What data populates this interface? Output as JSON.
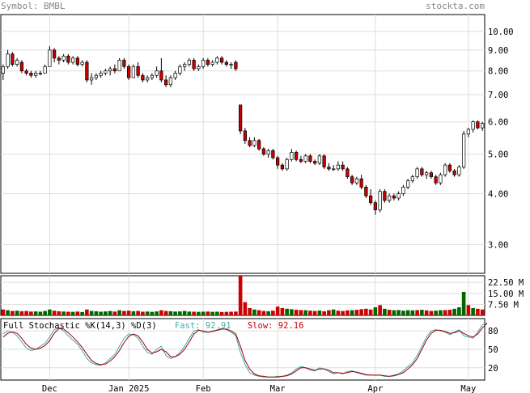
{
  "header": {
    "symbol_label": "Symbol: BMBL",
    "site": "stockta.com"
  },
  "chart_data": [
    {
      "type": "candlestick",
      "symbol": "BMBL",
      "yscale": "log",
      "ylim": [
        2.55,
        11.0
      ],
      "y_ticks": [
        "10.00",
        "9.00",
        "8.00",
        "7.00",
        "6.00",
        "5.00",
        "4.00",
        "3.00"
      ],
      "y_tick_values": [
        10,
        9,
        8,
        7,
        6,
        5,
        4,
        3
      ],
      "x_tick_labels": [
        "Dec",
        "Jan 2025",
        "Feb",
        "Mar",
        "Apr",
        "May"
      ],
      "x_tick_index": [
        10,
        27,
        43,
        59,
        80,
        100
      ],
      "grid": true,
      "colors": {
        "up": "#ffffff",
        "down": "#cc0000",
        "border": "#000000",
        "grid": "#dddddd"
      },
      "candles": [
        {
          "o": 7.9,
          "h": 8.3,
          "l": 7.6,
          "c": 8.2
        },
        {
          "o": 8.2,
          "h": 9.0,
          "l": 8.1,
          "c": 8.8
        },
        {
          "o": 8.8,
          "h": 8.9,
          "l": 8.2,
          "c": 8.3
        },
        {
          "o": 8.3,
          "h": 8.6,
          "l": 8.2,
          "c": 8.5
        },
        {
          "o": 8.4,
          "h": 8.5,
          "l": 7.9,
          "c": 8.0
        },
        {
          "o": 8.0,
          "h": 8.1,
          "l": 7.8,
          "c": 7.9
        },
        {
          "o": 7.9,
          "h": 8.0,
          "l": 7.7,
          "c": 7.8
        },
        {
          "o": 7.8,
          "h": 8.0,
          "l": 7.7,
          "c": 7.9
        },
        {
          "o": 7.9,
          "h": 8.0,
          "l": 7.8,
          "c": 7.9
        },
        {
          "o": 7.9,
          "h": 8.3,
          "l": 7.9,
          "c": 8.2
        },
        {
          "o": 8.2,
          "h": 9.2,
          "l": 8.2,
          "c": 9.0
        },
        {
          "o": 9.0,
          "h": 9.1,
          "l": 8.4,
          "c": 8.6
        },
        {
          "o": 8.6,
          "h": 8.7,
          "l": 8.3,
          "c": 8.5
        },
        {
          "o": 8.5,
          "h": 8.8,
          "l": 8.4,
          "c": 8.7
        },
        {
          "o": 8.7,
          "h": 8.8,
          "l": 8.3,
          "c": 8.4
        },
        {
          "o": 8.4,
          "h": 8.7,
          "l": 8.3,
          "c": 8.6
        },
        {
          "o": 8.6,
          "h": 8.7,
          "l": 8.2,
          "c": 8.3
        },
        {
          "o": 8.3,
          "h": 8.5,
          "l": 8.2,
          "c": 8.4
        },
        {
          "o": 8.4,
          "h": 8.5,
          "l": 7.5,
          "c": 7.6
        },
        {
          "o": 7.6,
          "h": 7.9,
          "l": 7.4,
          "c": 7.7
        },
        {
          "o": 7.7,
          "h": 7.9,
          "l": 7.6,
          "c": 7.8
        },
        {
          "o": 7.8,
          "h": 8.0,
          "l": 7.7,
          "c": 7.9
        },
        {
          "o": 7.9,
          "h": 8.1,
          "l": 7.8,
          "c": 8.0
        },
        {
          "o": 8.0,
          "h": 8.2,
          "l": 7.8,
          "c": 8.1
        },
        {
          "o": 8.1,
          "h": 8.3,
          "l": 7.9,
          "c": 8.0
        },
        {
          "o": 8.0,
          "h": 8.6,
          "l": 8.0,
          "c": 8.5
        },
        {
          "o": 8.5,
          "h": 8.6,
          "l": 8.1,
          "c": 8.2
        },
        {
          "o": 8.2,
          "h": 8.3,
          "l": 7.6,
          "c": 7.7
        },
        {
          "o": 7.7,
          "h": 8.3,
          "l": 7.7,
          "c": 8.2
        },
        {
          "o": 8.2,
          "h": 8.4,
          "l": 7.7,
          "c": 7.8
        },
        {
          "o": 7.8,
          "h": 7.9,
          "l": 7.5,
          "c": 7.6
        },
        {
          "o": 7.6,
          "h": 7.8,
          "l": 7.5,
          "c": 7.7
        },
        {
          "o": 7.7,
          "h": 7.9,
          "l": 7.6,
          "c": 7.8
        },
        {
          "o": 7.8,
          "h": 8.2,
          "l": 7.7,
          "c": 8.0
        },
        {
          "o": 8.0,
          "h": 8.6,
          "l": 7.5,
          "c": 7.6
        },
        {
          "o": 7.6,
          "h": 7.8,
          "l": 7.3,
          "c": 7.4
        },
        {
          "o": 7.4,
          "h": 7.8,
          "l": 7.3,
          "c": 7.7
        },
        {
          "o": 7.7,
          "h": 8.0,
          "l": 7.6,
          "c": 7.9
        },
        {
          "o": 7.9,
          "h": 8.3,
          "l": 7.8,
          "c": 8.2
        },
        {
          "o": 8.2,
          "h": 8.4,
          "l": 8.0,
          "c": 8.3
        },
        {
          "o": 8.3,
          "h": 8.6,
          "l": 8.2,
          "c": 8.5
        },
        {
          "o": 8.5,
          "h": 8.6,
          "l": 8.0,
          "c": 8.1
        },
        {
          "o": 8.1,
          "h": 8.3,
          "l": 8.0,
          "c": 8.2
        },
        {
          "o": 8.2,
          "h": 8.6,
          "l": 8.1,
          "c": 8.5
        },
        {
          "o": 8.5,
          "h": 8.6,
          "l": 8.2,
          "c": 8.3
        },
        {
          "o": 8.3,
          "h": 8.5,
          "l": 8.2,
          "c": 8.4
        },
        {
          "o": 8.4,
          "h": 8.7,
          "l": 8.3,
          "c": 8.6
        },
        {
          "o": 8.6,
          "h": 8.7,
          "l": 8.3,
          "c": 8.4
        },
        {
          "o": 8.4,
          "h": 8.5,
          "l": 8.2,
          "c": 8.3
        },
        {
          "o": 8.3,
          "h": 8.4,
          "l": 8.1,
          "c": 8.3
        },
        {
          "o": 8.4,
          "h": 8.5,
          "l": 8.0,
          "c": 8.1
        },
        {
          "o": 6.6,
          "h": 6.6,
          "l": 5.6,
          "c": 5.7
        },
        {
          "o": 5.7,
          "h": 5.8,
          "l": 5.3,
          "c": 5.4
        },
        {
          "o": 5.4,
          "h": 5.5,
          "l": 5.2,
          "c": 5.25
        },
        {
          "o": 5.25,
          "h": 5.5,
          "l": 5.2,
          "c": 5.4
        },
        {
          "o": 5.4,
          "h": 5.45,
          "l": 5.1,
          "c": 5.15
        },
        {
          "o": 5.15,
          "h": 5.2,
          "l": 4.95,
          "c": 5.0
        },
        {
          "o": 5.0,
          "h": 5.15,
          "l": 4.9,
          "c": 5.1
        },
        {
          "o": 5.1,
          "h": 5.15,
          "l": 4.85,
          "c": 4.9
        },
        {
          "o": 4.9,
          "h": 4.95,
          "l": 4.6,
          "c": 4.7
        },
        {
          "o": 4.7,
          "h": 4.75,
          "l": 4.55,
          "c": 4.6
        },
        {
          "o": 4.6,
          "h": 4.9,
          "l": 4.55,
          "c": 4.85
        },
        {
          "o": 4.85,
          "h": 5.15,
          "l": 4.8,
          "c": 5.05
        },
        {
          "o": 5.05,
          "h": 5.1,
          "l": 4.8,
          "c": 4.85
        },
        {
          "o": 4.85,
          "h": 4.95,
          "l": 4.75,
          "c": 4.8
        },
        {
          "o": 4.8,
          "h": 5.0,
          "l": 4.75,
          "c": 4.95
        },
        {
          "o": 4.95,
          "h": 5.0,
          "l": 4.75,
          "c": 4.8
        },
        {
          "o": 4.8,
          "h": 4.85,
          "l": 4.7,
          "c": 4.75
        },
        {
          "o": 4.75,
          "h": 5.0,
          "l": 4.7,
          "c": 4.95
        },
        {
          "o": 4.95,
          "h": 5.0,
          "l": 4.6,
          "c": 4.65
        },
        {
          "o": 4.65,
          "h": 4.75,
          "l": 4.55,
          "c": 4.6
        },
        {
          "o": 4.6,
          "h": 4.7,
          "l": 4.55,
          "c": 4.6
        },
        {
          "o": 4.6,
          "h": 4.8,
          "l": 4.55,
          "c": 4.7
        },
        {
          "o": 4.7,
          "h": 4.8,
          "l": 4.55,
          "c": 4.6
        },
        {
          "o": 4.6,
          "h": 4.65,
          "l": 4.35,
          "c": 4.4
        },
        {
          "o": 4.4,
          "h": 4.45,
          "l": 4.2,
          "c": 4.25
        },
        {
          "o": 4.25,
          "h": 4.4,
          "l": 4.2,
          "c": 4.35
        },
        {
          "o": 4.35,
          "h": 4.45,
          "l": 4.1,
          "c": 4.15
        },
        {
          "o": 4.15,
          "h": 4.2,
          "l": 3.9,
          "c": 3.95
        },
        {
          "o": 3.95,
          "h": 4.1,
          "l": 3.75,
          "c": 3.8
        },
        {
          "o": 3.8,
          "h": 3.85,
          "l": 3.55,
          "c": 3.65
        },
        {
          "o": 3.65,
          "h": 4.1,
          "l": 3.6,
          "c": 4.05
        },
        {
          "o": 4.05,
          "h": 4.1,
          "l": 3.8,
          "c": 3.85
        },
        {
          "o": 3.85,
          "h": 4.0,
          "l": 3.8,
          "c": 3.95
        },
        {
          "o": 3.95,
          "h": 4.0,
          "l": 3.85,
          "c": 3.9
        },
        {
          "o": 3.9,
          "h": 4.05,
          "l": 3.85,
          "c": 4.0
        },
        {
          "o": 4.0,
          "h": 4.2,
          "l": 3.95,
          "c": 4.15
        },
        {
          "o": 4.15,
          "h": 4.35,
          "l": 4.1,
          "c": 4.3
        },
        {
          "o": 4.3,
          "h": 4.45,
          "l": 4.25,
          "c": 4.4
        },
        {
          "o": 4.4,
          "h": 4.65,
          "l": 4.35,
          "c": 4.6
        },
        {
          "o": 4.6,
          "h": 4.65,
          "l": 4.4,
          "c": 4.45
        },
        {
          "o": 4.45,
          "h": 4.55,
          "l": 4.35,
          "c": 4.5
        },
        {
          "o": 4.5,
          "h": 4.55,
          "l": 4.35,
          "c": 4.4
        },
        {
          "o": 4.4,
          "h": 4.45,
          "l": 4.2,
          "c": 4.25
        },
        {
          "o": 4.25,
          "h": 4.5,
          "l": 4.2,
          "c": 4.45
        },
        {
          "o": 4.45,
          "h": 4.75,
          "l": 4.4,
          "c": 4.7
        },
        {
          "o": 4.7,
          "h": 4.75,
          "l": 4.5,
          "c": 4.55
        },
        {
          "o": 4.55,
          "h": 4.6,
          "l": 4.4,
          "c": 4.45
        },
        {
          "o": 4.45,
          "h": 4.7,
          "l": 4.4,
          "c": 4.65
        },
        {
          "o": 4.65,
          "h": 5.7,
          "l": 4.6,
          "c": 5.6
        },
        {
          "o": 5.6,
          "h": 5.8,
          "l": 5.5,
          "c": 5.75
        },
        {
          "o": 5.75,
          "h": 6.05,
          "l": 5.65,
          "c": 6.0
        },
        {
          "o": 6.0,
          "h": 6.05,
          "l": 5.75,
          "c": 5.8
        },
        {
          "o": 5.8,
          "h": 6.0,
          "l": 5.7,
          "c": 5.95
        }
      ]
    },
    {
      "type": "bar",
      "name": "volume",
      "y_ticks": [
        "22.50 M",
        "15.00 M",
        "7.50 M"
      ],
      "y_tick_values": [
        22.5,
        15,
        7.5
      ],
      "ylim": [
        0,
        27.0
      ],
      "unit": "M",
      "colors": {
        "up": "#006600",
        "down": "#cc0000"
      },
      "values": [
        4,
        3.5,
        3,
        3.2,
        2.8,
        3,
        2.6,
        2.7,
        2.5,
        3,
        4,
        3.2,
        2.8,
        2.6,
        2.5,
        2.4,
        2.6,
        2.3,
        4,
        3,
        2.8,
        2.5,
        2.7,
        3,
        2.6,
        3.5,
        3,
        3.2,
        2.8,
        3,
        2.5,
        2.6,
        2.4,
        2.7,
        3.5,
        3,
        2.8,
        2.6,
        2.7,
        3,
        2.6,
        2.5,
        2.4,
        2.5,
        2.6,
        2.4,
        2.5,
        2.3,
        2.4,
        2.5,
        2.6,
        27,
        9,
        5,
        4,
        3.5,
        3,
        2.8,
        3.2,
        6,
        5,
        4.5,
        4.2,
        3.8,
        3.6,
        3.5,
        3.2,
        3,
        3.3,
        2.8,
        3.5,
        4,
        3.2,
        3,
        3.4,
        3.5,
        3.8,
        4.2,
        4.5,
        4,
        5.5,
        7,
        4.5,
        3.8,
        3.5,
        3.6,
        3.2,
        3.5,
        3.4,
        3.6,
        3.8,
        3.4,
        3,
        3.2,
        3.5,
        3.6,
        3.8,
        4.5,
        5.5,
        16,
        7,
        5,
        4.5,
        4
      ],
      "up": [
        false,
        true,
        false,
        true,
        false,
        false,
        false,
        true,
        true,
        true,
        true,
        false,
        false,
        true,
        false,
        true,
        false,
        true,
        false,
        true,
        true,
        true,
        true,
        true,
        false,
        true,
        false,
        false,
        true,
        false,
        false,
        true,
        true,
        true,
        false,
        false,
        true,
        true,
        true,
        true,
        true,
        false,
        true,
        true,
        false,
        true,
        true,
        false,
        false,
        false,
        false,
        false,
        false,
        false,
        true,
        false,
        false,
        true,
        false,
        false,
        false,
        true,
        true,
        false,
        false,
        true,
        false,
        false,
        true,
        false,
        false,
        true,
        false,
        false,
        false,
        true,
        false,
        false,
        false,
        false,
        true,
        false,
        true,
        false,
        true,
        true,
        true,
        true,
        true,
        false,
        true,
        false,
        false,
        true,
        true,
        false,
        false,
        true,
        true,
        true,
        false,
        true
      ]
    },
    {
      "type": "line",
      "name": "Full Stochastic %K(14,3) %D(3)",
      "ylim": [
        0,
        100
      ],
      "y_ticks": [
        "80",
        "50",
        "20"
      ],
      "y_tick_values": [
        80,
        50,
        20
      ],
      "series": [
        {
          "name": "Fast",
          "last": "92.91",
          "color": "#44aaaa",
          "values": [
            75,
            80,
            78,
            72,
            62,
            52,
            48,
            50,
            55,
            60,
            70,
            82,
            85,
            80,
            72,
            65,
            58,
            48,
            35,
            28,
            25,
            24,
            28,
            35,
            42,
            55,
            68,
            75,
            74,
            68,
            55,
            45,
            42,
            50,
            55,
            40,
            35,
            38,
            45,
            55,
            68,
            80,
            82,
            78,
            78,
            80,
            82,
            84,
            82,
            78,
            72,
            45,
            25,
            12,
            8,
            6,
            5,
            5,
            5,
            6,
            6,
            8,
            12,
            18,
            22,
            20,
            16,
            15,
            20,
            18,
            14,
            10,
            12,
            10,
            14,
            15,
            12,
            10,
            8,
            8,
            8,
            8,
            6,
            6,
            8,
            10,
            15,
            22,
            28,
            40,
            55,
            70,
            80,
            82,
            80,
            78,
            74,
            78,
            82,
            72,
            70,
            68,
            78,
            90,
            92.91
          ]
        },
        {
          "name": "Slow",
          "last": "92.16",
          "color": "#990000",
          "values": [
            70,
            76,
            78,
            76,
            68,
            58,
            52,
            50,
            52,
            56,
            64,
            76,
            84,
            83,
            77,
            70,
            62,
            53,
            42,
            32,
            27,
            25,
            26,
            31,
            38,
            48,
            61,
            71,
            75,
            72,
            62,
            50,
            44,
            46,
            50,
            46,
            38,
            38,
            42,
            50,
            62,
            75,
            81,
            80,
            78,
            79,
            81,
            83,
            83,
            80,
            75,
            55,
            32,
            18,
            10,
            7,
            6,
            5,
            5,
            5,
            6,
            7,
            10,
            15,
            20,
            20,
            18,
            16,
            18,
            18,
            16,
            12,
            12,
            11,
            12,
            14,
            13,
            11,
            9,
            8,
            8,
            8,
            7,
            6,
            7,
            9,
            12,
            18,
            25,
            35,
            50,
            65,
            76,
            81,
            81,
            79,
            76,
            77,
            80,
            76,
            72,
            70,
            75,
            85,
            92.16
          ]
        }
      ]
    }
  ],
  "stoch_legend": {
    "title": "Full Stochastic %K(14,3) %D(3)",
    "fast_label": "Fast: ",
    "fast_value": "92.91",
    "slow_label": "Slow: ",
    "slow_value": "92.16"
  }
}
